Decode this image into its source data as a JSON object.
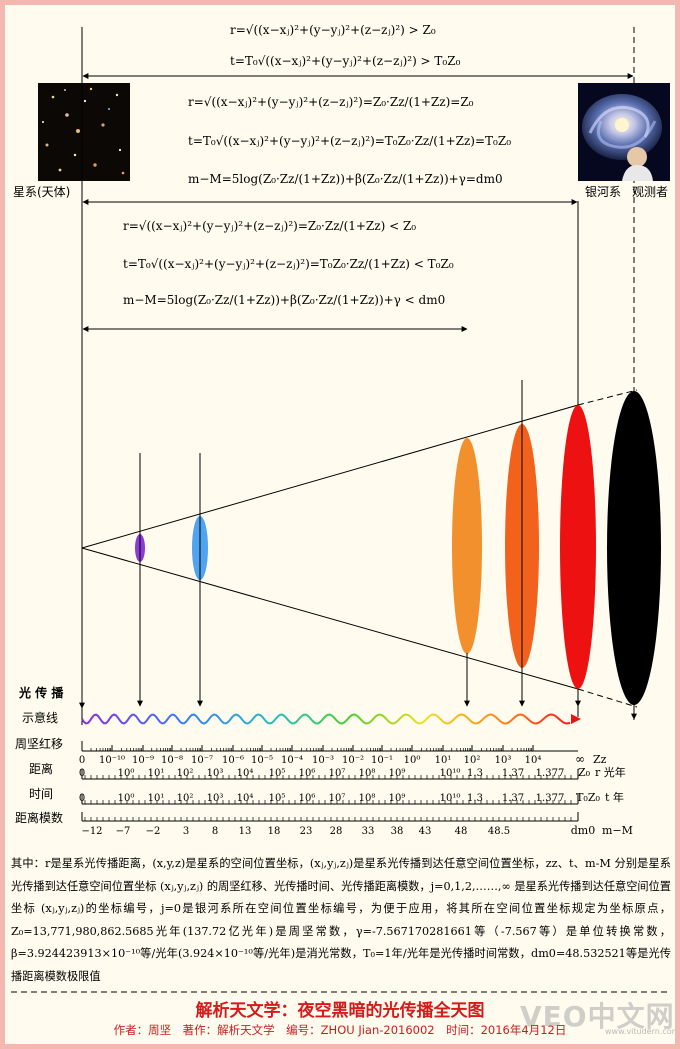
{
  "equations": {
    "top_r": "r=√((x−xⱼ)²+(y−yⱼ)²+(z−zⱼ)²) > Z₀",
    "top_t": "t=T₀√((x−xⱼ)²+(y−yⱼ)²+(z−zⱼ)²) > T₀Z₀",
    "mid_r": "r=√((x−xⱼ)²+(y−yⱼ)²+(z−zⱼ)²)=Z₀·Zz/(1+Zz)=Z₀",
    "mid_t": "t=T₀√((x−xⱼ)²+(y−yⱼ)²+(z−zⱼ)²)=T₀Z₀·Zz/(1+Zz)=T₀Z₀",
    "mid_m": "m−M=5log(Z₀·Zz/(1+Zz))+β(Z₀·Zz/(1+Zz))+γ=dm0",
    "low_r": "r=√((x−xⱼ)²+(y−yⱼ)²+(z−zⱼ)²)=Z₀·Zz/(1+Zz) < Z₀",
    "low_t": "t=T₀√((x−xⱼ)²+(y−yⱼ)²+(z−zⱼ)²)=T₀Z₀·Zz/(1+Zz) < T₀Z₀",
    "low_m": "m−M=5log(Z₀·Zz/(1+Zz))+β(Z₀·Zz/(1+Zz))+γ < dm0"
  },
  "labels": {
    "galaxy": "星系(天体)",
    "milky_way": "银河系",
    "observer": "观测者",
    "light_prop": "光 传 播",
    "schematic": "示意线",
    "redshift": "周坚红移",
    "distance": "距离",
    "time": "时间",
    "modulus": "距离模数"
  },
  "scales": {
    "redshift_ticks": [
      "0",
      "10⁻¹⁰",
      "10⁻⁹",
      "10⁻⁸",
      "10⁻⁷",
      "10⁻⁶",
      "10⁻⁵",
      "10⁻⁴",
      "10⁻³",
      "10⁻²",
      "10⁻¹",
      "10⁰",
      "10¹",
      "10²",
      "10³",
      "10⁴"
    ],
    "redshift_end": "∞",
    "redshift_unit": "Zz",
    "distance_ticks": [
      "0",
      "10⁰",
      "10¹",
      "10²",
      "10³",
      "10⁴",
      "10⁵",
      "10⁶",
      "10⁷",
      "10⁸",
      "10⁹",
      "10¹⁰",
      "1.3",
      "1.37",
      "1.377"
    ],
    "distance_end": "Z₀",
    "distance_unit": "r 光年",
    "time_ticks": [
      "0",
      "10⁰",
      "10¹",
      "10²",
      "10³",
      "10⁴",
      "10⁵",
      "10⁶",
      "10⁷",
      "10⁸",
      "10⁹",
      "10¹⁰",
      "1.3",
      "1.37",
      "1.377"
    ],
    "time_end": "T₀Z₀",
    "time_unit": "t 年",
    "modulus_ticks": [
      "−12",
      "−7",
      "−2",
      "3",
      "8",
      "13",
      "18",
      "23",
      "28",
      "33",
      "38",
      "43",
      "48",
      "48.5"
    ],
    "modulus_end": "dm0",
    "modulus_unit": "m−M"
  },
  "note": "其中：r是星系光传播距离，(x,y,z)是星系的空间位置坐标，(xⱼ,yⱼ,zⱼ)是星系光传播到达任意空间位置坐标，zz、t、m-M 分别是星系光传播到达任意空间位置坐标 (xⱼ,yⱼ,zⱼ) 的周坚红移、光传播时间、光传播距离模数，j=0,1,2,……,∞ 是星系光传播到达任意空间位置坐标 (xⱼ,yⱼ,zⱼ)的坐标编号，j=0是银河系所在空间位置坐标编号，为便于应用，将其所在空间位置坐标规定为坐标原点，Z₀=13,771,980,862.5685光年(137.72亿光年)是周坚常数，γ=-7.567170281661等（-7.567等）是单位转换常数，β=3.924423913×10⁻¹⁰等/光年(3.924×10⁻¹⁰等/光年)是消光常数，T₀=1年/光年是光传播时间常数，dm0=48.532521等是光传播距离模数极限值",
  "title": "解析天文学：夜空黑暗的光传播全天图",
  "author": "作者：周坚　著作：解析天文学　编号：ZHOU Jian-2016002　时间：2016年4月12日",
  "watermark": "VEO中文网",
  "watermark_url": "www.vitudern.com",
  "colors": {
    "ellipse1": "#8a3bd6",
    "ellipse2": "#4fa3f0",
    "ellipse3": "#f2902e",
    "ellipse4": "#f2621c",
    "ellipse5": "#ee1111",
    "ellipse6": "#000000",
    "title": "#d61a1a"
  }
}
